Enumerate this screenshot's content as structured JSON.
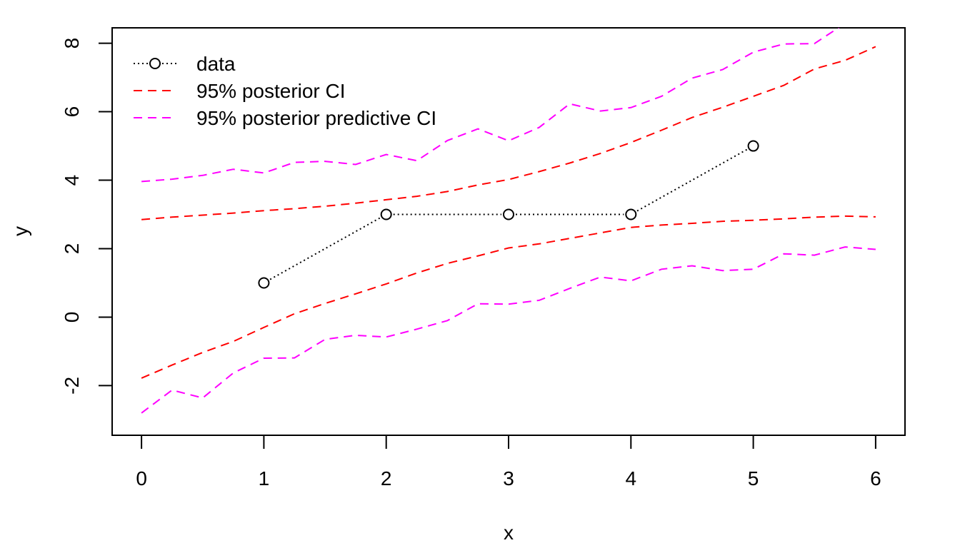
{
  "chart_data": {
    "type": "line",
    "xlabel": "x",
    "ylabel": "y",
    "xlim": [
      -0.24,
      6.24
    ],
    "ylim": [
      -3.45,
      8.45
    ],
    "x_ticks": [
      0,
      1,
      2,
      3,
      4,
      5,
      6
    ],
    "y_ticks": [
      -2,
      0,
      2,
      4,
      6,
      8
    ],
    "x_tick_labels": [
      "0",
      "1",
      "2",
      "3",
      "4",
      "5",
      "6"
    ],
    "y_tick_labels": [
      "-2",
      "0",
      "2",
      "4",
      "6",
      "8"
    ],
    "grid": false,
    "legend_position": "top-left",
    "legend": [
      {
        "label": "data",
        "color": "#000000",
        "style": "dotted-with-circle"
      },
      {
        "label": "95% posterior CI",
        "color": "#ff0000",
        "style": "dashed"
      },
      {
        "label": "95% posterior predictive CI",
        "color": "#ff00ff",
        "style": "dashed"
      }
    ],
    "series": [
      {
        "role": "data",
        "color": "#000000",
        "line": "dotted",
        "marker": "circle",
        "x": [
          1,
          2,
          3,
          4,
          5
        ],
        "y": [
          1,
          3,
          3,
          3,
          5
        ]
      },
      {
        "role": "posterior-ci-upper",
        "color": "#ff0000",
        "line": "dashed",
        "x": [
          0,
          0.25,
          0.5,
          0.75,
          1,
          1.25,
          1.5,
          1.75,
          2,
          2.25,
          2.5,
          2.75,
          3,
          3.25,
          3.5,
          3.75,
          4,
          4.25,
          4.5,
          4.75,
          5,
          5.25,
          5.5,
          5.75,
          6
        ],
        "y": [
          2.85,
          2.92,
          2.98,
          3.04,
          3.11,
          3.17,
          3.24,
          3.33,
          3.43,
          3.53,
          3.67,
          3.86,
          4.02,
          4.25,
          4.5,
          4.78,
          5.1,
          5.46,
          5.83,
          6.13,
          6.45,
          6.77,
          7.25,
          7.5,
          7.9
        ]
      },
      {
        "role": "posterior-ci-lower",
        "color": "#ff0000",
        "line": "dashed",
        "x": [
          0,
          0.25,
          0.5,
          0.75,
          1,
          1.25,
          1.5,
          1.75,
          2,
          2.25,
          2.5,
          2.75,
          3,
          3.25,
          3.5,
          3.75,
          4,
          4.25,
          4.5,
          4.75,
          5,
          5.25,
          5.5,
          5.75,
          6
        ],
        "y": [
          -1.78,
          -1.4,
          -1.03,
          -0.71,
          -0.3,
          0.1,
          0.4,
          0.68,
          0.97,
          1.29,
          1.57,
          1.79,
          2.02,
          2.14,
          2.3,
          2.46,
          2.62,
          2.69,
          2.74,
          2.8,
          2.83,
          2.87,
          2.92,
          2.95,
          2.93
        ]
      },
      {
        "role": "posterior-predictive-ci-upper",
        "color": "#ff00ff",
        "line": "dashed",
        "x": [
          0,
          0.25,
          0.5,
          0.75,
          1,
          1.25,
          1.5,
          1.75,
          2,
          2.25,
          2.5,
          2.75,
          3,
          3.25,
          3.5,
          3.75,
          4,
          4.25,
          4.5,
          4.75,
          5,
          5.25,
          5.5,
          5.75,
          6
        ],
        "y": [
          3.96,
          4.03,
          4.14,
          4.32,
          4.21,
          4.52,
          4.55,
          4.46,
          4.75,
          4.57,
          5.16,
          5.5,
          5.15,
          5.54,
          6.23,
          6.02,
          6.12,
          6.45,
          6.98,
          7.23,
          7.74,
          7.98,
          7.99,
          8.58,
          8.95
        ]
      },
      {
        "role": "posterior-predictive-ci-lower",
        "color": "#ff00ff",
        "line": "dashed",
        "x": [
          0,
          0.25,
          0.5,
          0.75,
          1,
          1.25,
          1.5,
          1.75,
          2,
          2.25,
          2.5,
          2.75,
          3,
          3.25,
          3.5,
          3.75,
          4,
          4.25,
          4.5,
          4.75,
          5,
          5.25,
          5.5,
          5.75,
          6
        ],
        "y": [
          -2.8,
          -2.13,
          -2.36,
          -1.63,
          -1.2,
          -1.19,
          -0.65,
          -0.53,
          -0.58,
          -0.35,
          -0.1,
          0.39,
          0.38,
          0.49,
          0.84,
          1.17,
          1.06,
          1.4,
          1.5,
          1.36,
          1.4,
          1.85,
          1.81,
          2.05,
          1.98
        ]
      }
    ]
  }
}
